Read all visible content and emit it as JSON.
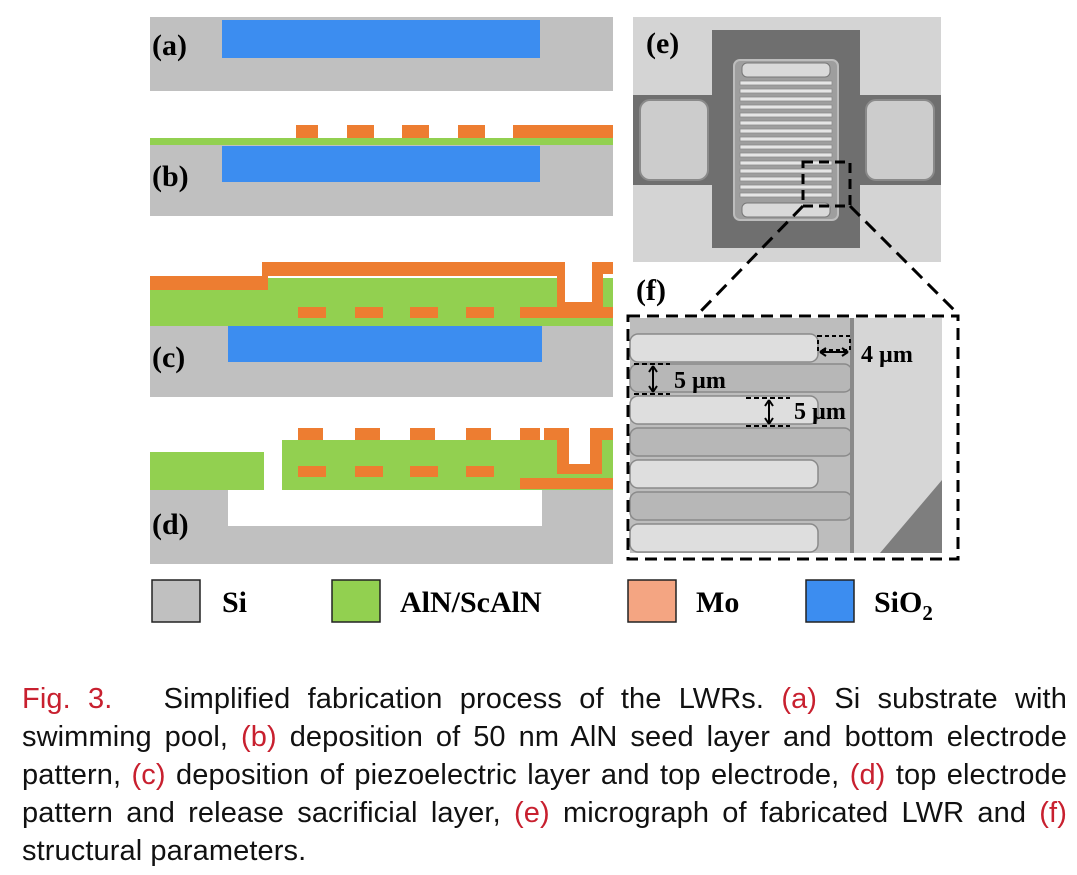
{
  "panels": {
    "a": "(a)",
    "b": "(b)",
    "c": "(c)",
    "d": "(d)",
    "e": "(e)",
    "f": "(f)"
  },
  "dimensions": {
    "gap_width": "4 µm",
    "finger_pitch": "5 µm",
    "finger_width": "5 µm"
  },
  "legend": [
    {
      "label": "Si",
      "color": "#c0c0c0"
    },
    {
      "label": "AlN/ScAlN",
      "color": "#92d050"
    },
    {
      "label": "Mo",
      "color": "#f4a582"
    },
    {
      "label": "SiO",
      "subscript": "2",
      "color": "#3c8df0"
    }
  ],
  "colors": {
    "si": "#c0c0c0",
    "aln": "#92d050",
    "mo": "#ed7d31",
    "sio2": "#3c8df0",
    "caption_ref": "#c8202f"
  },
  "caption": {
    "fig": "Fig. 3.",
    "t0": "Simplified fabrication process of the LWRs.",
    "a": "(a)",
    "t1": "Si substrate with swimming pool,",
    "b": "(b)",
    "t2": "deposition of 50 nm AlN seed layer and bottom electrode pattern,",
    "c": "(c)",
    "t3": "deposition of piezoelectric layer and top electrode,",
    "d": "(d)",
    "t4": "top electrode pattern and release sacrificial layer,",
    "e": "(e)",
    "t5": "micrograph of fabricated LWR and",
    "f": "(f)",
    "t6": "structural parameters."
  }
}
